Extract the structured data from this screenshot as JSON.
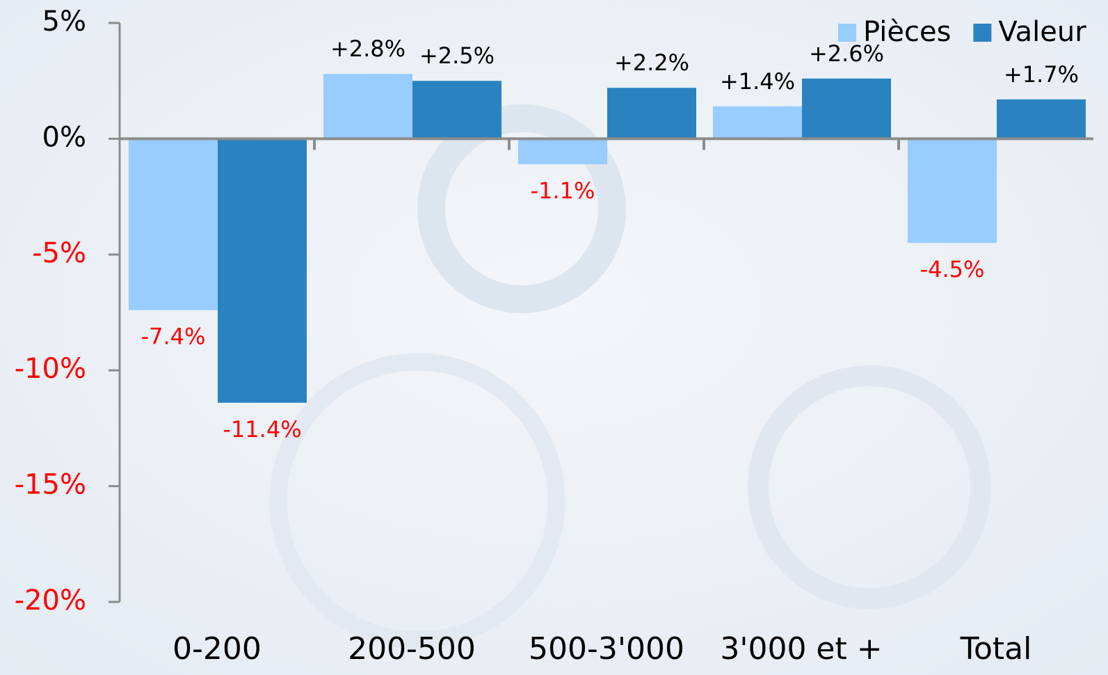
{
  "chart_data": {
    "type": "bar",
    "categories": [
      "0-200",
      "200-500",
      "500-3'000",
      "3'000 et +",
      "Total"
    ],
    "series": [
      {
        "name": "Pièces",
        "color": "#99ccff",
        "values": [
          -7.4,
          2.8,
          -1.1,
          1.4,
          -4.5
        ],
        "value_labels": [
          "-7.4%",
          "+2.8%",
          "-1.1%",
          "+1.4%",
          "-4.5%"
        ]
      },
      {
        "name": "Valeur",
        "color": "#2a83c0",
        "values": [
          -11.4,
          2.5,
          2.2,
          2.6,
          1.7
        ],
        "value_labels": [
          "-11.4%",
          "+2.5%",
          "+2.2%",
          "+2.6%",
          "+1.7%"
        ]
      }
    ],
    "ylim": [
      -20,
      5
    ],
    "yticks": [
      {
        "value": 5,
        "label": "5%"
      },
      {
        "value": 0,
        "label": "0%"
      },
      {
        "value": -5,
        "label": "-5%"
      },
      {
        "value": -10,
        "label": "-10%"
      },
      {
        "value": -15,
        "label": "-15%"
      },
      {
        "value": -20,
        "label": "-20%"
      }
    ],
    "legend": "top right",
    "negative_color": "#ff0000"
  }
}
